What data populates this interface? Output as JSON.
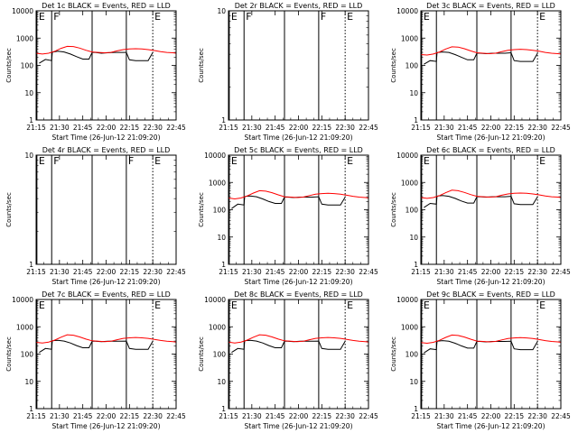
{
  "figure": {
    "xlabel": "Start Time (26-Jun-12 21:09:20)",
    "ylabel": "Counts/sec",
    "x_ticks": [
      "21:15",
      "21:30",
      "21:45",
      "22:00",
      "22:15",
      "22:30",
      "22:45"
    ],
    "x_tick_minutes": [
      0,
      15,
      30,
      45,
      60,
      75,
      90
    ],
    "colors": {
      "events": "#000000",
      "lld": "#ff0000",
      "axes": "#000000"
    }
  },
  "chart_data": [
    {
      "type": "line",
      "title": "Det 1c BLACK = Events, RED = LLD",
      "ylog": true,
      "ylim": [
        1,
        10000
      ],
      "yticks": [
        "1",
        "10",
        "100",
        "1000",
        "10000"
      ],
      "xlim": [
        0,
        90
      ],
      "markers": [
        {
          "x": 0.5,
          "label": "E",
          "style": "solid"
        },
        {
          "x": 10,
          "label": "F",
          "style": "solid"
        },
        {
          "x": 36,
          "label": "",
          "style": "solid"
        },
        {
          "x": 58,
          "label": "",
          "style": "solid"
        },
        {
          "x": 75,
          "label": "E",
          "style": "dotted"
        }
      ],
      "series": [
        {
          "name": "Events",
          "x": [
            2,
            6,
            10,
            10.4,
            11,
            14,
            18,
            22,
            26,
            30,
            34,
            36,
            38,
            42,
            46,
            50,
            54,
            58,
            60,
            64,
            68,
            72,
            75
          ],
          "y": [
            120,
            165,
            150,
            300,
            310,
            330,
            310,
            260,
            210,
            170,
            170,
            300,
            300,
            280,
            290,
            300,
            300,
            300,
            160,
            150,
            150,
            150,
            300
          ]
        },
        {
          "name": "LLD",
          "x": [
            0,
            4,
            8,
            12,
            16,
            20,
            24,
            28,
            32,
            36,
            40,
            44,
            48,
            52,
            56,
            60,
            64,
            68,
            72,
            76,
            80,
            84,
            88,
            90
          ],
          "y": [
            280,
            260,
            280,
            330,
            420,
            500,
            490,
            430,
            360,
            310,
            300,
            290,
            300,
            340,
            380,
            400,
            410,
            400,
            380,
            350,
            320,
            300,
            290,
            280
          ]
        }
      ]
    },
    {
      "type": "line",
      "title": "Det 2r BLACK = Events, RED = LLD",
      "ylog": true,
      "ylim": [
        1,
        10
      ],
      "yticks": [
        "1",
        "10"
      ],
      "xlim": [
        0,
        90
      ],
      "markers": [
        {
          "x": 0.5,
          "label": "E",
          "style": "solid"
        },
        {
          "x": 10,
          "label": "F",
          "style": "solid"
        },
        {
          "x": 36,
          "label": "",
          "style": "solid"
        },
        {
          "x": 58,
          "label": "F",
          "style": "solid"
        },
        {
          "x": 75,
          "label": "E",
          "style": "dotted"
        }
      ],
      "series": []
    },
    {
      "type": "line",
      "title": "Det 3c BLACK = Events, RED = LLD",
      "ylog": true,
      "ylim": [
        1,
        10000
      ],
      "yticks": [
        "1",
        "10",
        "100",
        "1000",
        "10000"
      ],
      "xlim": [
        0,
        90
      ],
      "markers": [
        {
          "x": 0.5,
          "label": "E",
          "style": "solid"
        },
        {
          "x": 10,
          "label": "",
          "style": "solid"
        },
        {
          "x": 36,
          "label": "",
          "style": "solid"
        },
        {
          "x": 58,
          "label": "",
          "style": "solid"
        },
        {
          "x": 75,
          "label": "E",
          "style": "dotted"
        }
      ],
      "series": [
        {
          "name": "Events",
          "x": [
            2,
            6,
            10,
            10.4,
            11,
            14,
            18,
            22,
            26,
            30,
            34,
            36,
            38,
            42,
            46,
            50,
            54,
            58,
            60,
            64,
            68,
            72,
            75
          ],
          "y": [
            110,
            150,
            140,
            290,
            300,
            310,
            300,
            250,
            200,
            160,
            160,
            280,
            280,
            270,
            280,
            280,
            280,
            290,
            150,
            140,
            140,
            140,
            280
          ]
        },
        {
          "name": "LLD",
          "x": [
            0,
            4,
            8,
            12,
            16,
            20,
            24,
            28,
            32,
            36,
            40,
            44,
            48,
            52,
            56,
            60,
            64,
            68,
            72,
            76,
            80,
            84,
            88,
            90
          ],
          "y": [
            250,
            240,
            260,
            310,
            400,
            480,
            470,
            410,
            340,
            290,
            280,
            270,
            280,
            320,
            360,
            380,
            390,
            380,
            360,
            330,
            300,
            280,
            270,
            260
          ]
        }
      ]
    },
    {
      "type": "line",
      "title": "Det 4r BLACK = Events, RED = LLD",
      "ylog": true,
      "ylim": [
        1,
        10
      ],
      "yticks": [
        "1",
        "10"
      ],
      "xlim": [
        0,
        90
      ],
      "markers": [
        {
          "x": 0.5,
          "label": "E",
          "style": "solid"
        },
        {
          "x": 10,
          "label": "F",
          "style": "solid"
        },
        {
          "x": 36,
          "label": "",
          "style": "solid"
        },
        {
          "x": 58,
          "label": "F",
          "style": "solid"
        },
        {
          "x": 75,
          "label": "E",
          "style": "dotted"
        }
      ],
      "series": []
    },
    {
      "type": "line",
      "title": "Det 5c BLACK = Events, RED = LLD",
      "ylog": true,
      "ylim": [
        1,
        10000
      ],
      "yticks": [
        "1",
        "10",
        "100",
        "1000",
        "10000"
      ],
      "xlim": [
        0,
        90
      ],
      "markers": [
        {
          "x": 0.5,
          "label": "E",
          "style": "solid"
        },
        {
          "x": 10,
          "label": "",
          "style": "solid"
        },
        {
          "x": 36,
          "label": "",
          "style": "solid"
        },
        {
          "x": 58,
          "label": "",
          "style": "solid"
        },
        {
          "x": 75,
          "label": "E",
          "style": "dotted"
        }
      ],
      "series": [
        {
          "name": "Events",
          "x": [
            2,
            6,
            10,
            10.4,
            11,
            14,
            18,
            22,
            26,
            30,
            34,
            36,
            38,
            42,
            46,
            50,
            54,
            58,
            60,
            64,
            68,
            72,
            75
          ],
          "y": [
            110,
            160,
            150,
            300,
            310,
            320,
            300,
            250,
            200,
            170,
            170,
            290,
            290,
            280,
            290,
            290,
            290,
            300,
            160,
            150,
            150,
            150,
            290
          ]
        },
        {
          "name": "LLD",
          "x": [
            0,
            4,
            8,
            12,
            16,
            20,
            24,
            28,
            32,
            36,
            40,
            44,
            48,
            52,
            56,
            60,
            64,
            68,
            72,
            76,
            80,
            84,
            88,
            90
          ],
          "y": [
            270,
            250,
            270,
            320,
            410,
            500,
            480,
            420,
            350,
            300,
            290,
            280,
            290,
            330,
            370,
            390,
            400,
            390,
            370,
            340,
            310,
            290,
            280,
            270
          ]
        }
      ]
    },
    {
      "type": "line",
      "title": "Det 6c BLACK = Events, RED = LLD",
      "ylog": true,
      "ylim": [
        1,
        10000
      ],
      "yticks": [
        "1",
        "10",
        "100",
        "1000",
        "10000"
      ],
      "xlim": [
        0,
        90
      ],
      "markers": [
        {
          "x": 0.5,
          "label": "E",
          "style": "solid"
        },
        {
          "x": 10,
          "label": "",
          "style": "solid"
        },
        {
          "x": 36,
          "label": "",
          "style": "solid"
        },
        {
          "x": 58,
          "label": "",
          "style": "solid"
        },
        {
          "x": 75,
          "label": "E",
          "style": "dotted"
        }
      ],
      "series": [
        {
          "name": "Events",
          "x": [
            2,
            6,
            10,
            10.4,
            11,
            14,
            18,
            22,
            26,
            30,
            34,
            36,
            38,
            42,
            46,
            50,
            54,
            58,
            60,
            64,
            68,
            72,
            75
          ],
          "y": [
            120,
            170,
            160,
            310,
            320,
            330,
            310,
            260,
            210,
            175,
            175,
            300,
            300,
            290,
            300,
            300,
            300,
            310,
            165,
            155,
            155,
            155,
            300
          ]
        },
        {
          "name": "LLD",
          "x": [
            0,
            4,
            8,
            12,
            16,
            20,
            24,
            28,
            32,
            36,
            40,
            44,
            48,
            52,
            56,
            60,
            64,
            68,
            72,
            76,
            80,
            84,
            88,
            90
          ],
          "y": [
            280,
            260,
            280,
            330,
            420,
            520,
            500,
            430,
            360,
            310,
            300,
            290,
            300,
            340,
            380,
            400,
            410,
            400,
            380,
            350,
            320,
            300,
            290,
            280
          ]
        }
      ]
    },
    {
      "type": "line",
      "title": "Det 7c BLACK = Events, RED = LLD",
      "ylog": true,
      "ylim": [
        1,
        10000
      ],
      "yticks": [
        "1",
        "10",
        "100",
        "1000",
        "10000"
      ],
      "xlim": [
        0,
        90
      ],
      "markers": [
        {
          "x": 0.5,
          "label": "E",
          "style": "solid"
        },
        {
          "x": 10,
          "label": "",
          "style": "solid"
        },
        {
          "x": 36,
          "label": "",
          "style": "solid"
        },
        {
          "x": 58,
          "label": "",
          "style": "solid"
        },
        {
          "x": 75,
          "label": "E",
          "style": "dotted"
        }
      ],
      "series": [
        {
          "name": "Events",
          "x": [
            2,
            6,
            10,
            10.4,
            11,
            14,
            18,
            22,
            26,
            30,
            34,
            36,
            38,
            42,
            46,
            50,
            54,
            58,
            60,
            64,
            68,
            72,
            75
          ],
          "y": [
            115,
            160,
            150,
            300,
            310,
            320,
            300,
            255,
            205,
            170,
            170,
            295,
            295,
            285,
            295,
            295,
            295,
            300,
            160,
            150,
            150,
            150,
            295
          ]
        },
        {
          "name": "LLD",
          "x": [
            0,
            4,
            8,
            12,
            16,
            20,
            24,
            28,
            32,
            36,
            40,
            44,
            48,
            52,
            56,
            60,
            64,
            68,
            72,
            76,
            80,
            84,
            88,
            90
          ],
          "y": [
            270,
            255,
            275,
            325,
            415,
            510,
            490,
            425,
            355,
            305,
            295,
            285,
            295,
            335,
            375,
            395,
            405,
            395,
            375,
            345,
            315,
            295,
            285,
            275
          ]
        }
      ]
    },
    {
      "type": "line",
      "title": "Det 8c BLACK = Events, RED = LLD",
      "ylog": true,
      "ylim": [
        1,
        10000
      ],
      "yticks": [
        "1",
        "10",
        "100",
        "1000",
        "10000"
      ],
      "xlim": [
        0,
        90
      ],
      "markers": [
        {
          "x": 0.5,
          "label": "E",
          "style": "solid"
        },
        {
          "x": 10,
          "label": "",
          "style": "solid"
        },
        {
          "x": 36,
          "label": "",
          "style": "solid"
        },
        {
          "x": 58,
          "label": "",
          "style": "solid"
        },
        {
          "x": 75,
          "label": "E",
          "style": "dotted"
        }
      ],
      "series": [
        {
          "name": "Events",
          "x": [
            2,
            6,
            10,
            10.4,
            11,
            14,
            18,
            22,
            26,
            30,
            34,
            36,
            38,
            42,
            46,
            50,
            54,
            58,
            60,
            64,
            68,
            72,
            75
          ],
          "y": [
            115,
            160,
            150,
            300,
            310,
            320,
            300,
            255,
            205,
            170,
            170,
            295,
            295,
            285,
            295,
            295,
            295,
            300,
            160,
            150,
            150,
            150,
            295
          ]
        },
        {
          "name": "LLD",
          "x": [
            0,
            4,
            8,
            12,
            16,
            20,
            24,
            28,
            32,
            36,
            40,
            44,
            48,
            52,
            56,
            60,
            64,
            68,
            72,
            76,
            80,
            84,
            88,
            90
          ],
          "y": [
            275,
            255,
            275,
            325,
            415,
            510,
            490,
            425,
            355,
            305,
            295,
            285,
            295,
            335,
            375,
            395,
            405,
            395,
            375,
            345,
            315,
            295,
            285,
            275
          ]
        }
      ]
    },
    {
      "type": "line",
      "title": "Det 9c BLACK = Events, RED = LLD",
      "ylog": true,
      "ylim": [
        1,
        10000
      ],
      "yticks": [
        "1",
        "10",
        "100",
        "1000",
        "10000"
      ],
      "xlim": [
        0,
        90
      ],
      "markers": [
        {
          "x": 0.5,
          "label": "E",
          "style": "solid"
        },
        {
          "x": 10,
          "label": "",
          "style": "solid"
        },
        {
          "x": 36,
          "label": "",
          "style": "solid"
        },
        {
          "x": 58,
          "label": "",
          "style": "solid"
        },
        {
          "x": 75,
          "label": "E",
          "style": "dotted"
        }
      ],
      "series": [
        {
          "name": "Events",
          "x": [
            2,
            6,
            10,
            10.4,
            11,
            14,
            18,
            22,
            26,
            30,
            34,
            36,
            38,
            42,
            46,
            50,
            54,
            58,
            60,
            64,
            68,
            72,
            75
          ],
          "y": [
            110,
            155,
            145,
            290,
            300,
            310,
            295,
            250,
            200,
            165,
            165,
            290,
            290,
            280,
            290,
            290,
            290,
            295,
            155,
            145,
            145,
            145,
            290
          ]
        },
        {
          "name": "LLD",
          "x": [
            0,
            4,
            8,
            12,
            16,
            20,
            24,
            28,
            32,
            36,
            40,
            44,
            48,
            52,
            56,
            60,
            64,
            68,
            72,
            76,
            80,
            84,
            88,
            90
          ],
          "y": [
            265,
            250,
            270,
            320,
            410,
            500,
            480,
            420,
            350,
            300,
            290,
            280,
            290,
            330,
            370,
            390,
            400,
            390,
            370,
            340,
            310,
            290,
            280,
            270
          ]
        }
      ]
    }
  ]
}
